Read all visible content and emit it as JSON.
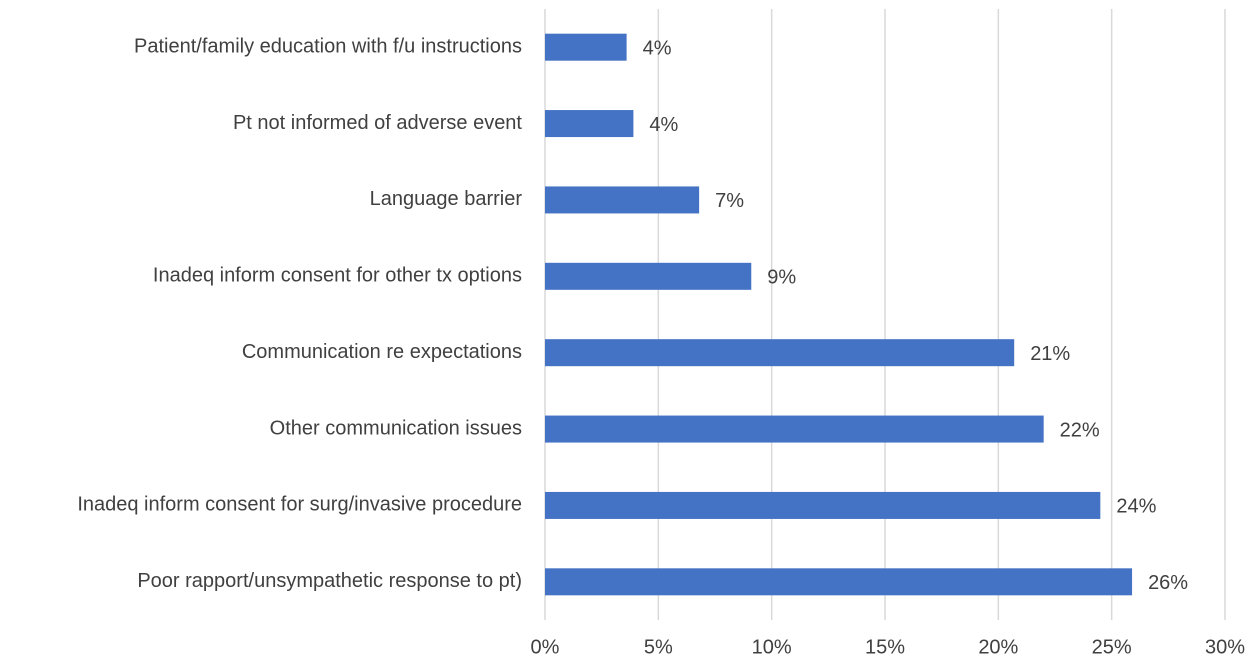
{
  "chart_data": {
    "type": "barh",
    "categories": [
      "Patient/family education with f/u instructions",
      "Pt not informed of adverse event",
      "Language barrier",
      "Inadeq inform consent for other tx options",
      "Communication re expectations",
      "Other communication issues",
      "Inadeq inform consent for surg/invasive procedure",
      "Poor rapport/unsympathetic response to pt)"
    ],
    "values": [
      3.6,
      3.9,
      6.8,
      9.1,
      20.7,
      22.0,
      24.5,
      25.9
    ],
    "value_labels": [
      "4%",
      "4%",
      "7%",
      "9%",
      "21%",
      "22%",
      "24%",
      "26%"
    ],
    "color": "#4472c4",
    "xlim": [
      0,
      30
    ],
    "xticks": [
      {
        "value": 0,
        "label": "0%"
      },
      {
        "value": 5,
        "label": "5%"
      },
      {
        "value": 10,
        "label": "10%"
      },
      {
        "value": 15,
        "label": "15%"
      },
      {
        "value": 20,
        "label": "20%"
      },
      {
        "value": 25,
        "label": "25%"
      },
      {
        "value": 30,
        "label": "30%"
      }
    ],
    "grid": true
  }
}
